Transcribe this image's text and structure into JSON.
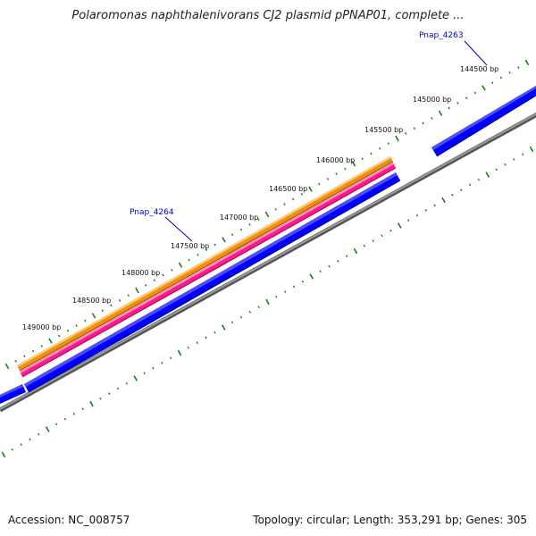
{
  "title": "Polaromonas naphthalenivorans CJ2 plasmid pPNAP01, complete ...",
  "footer": {
    "accession": "Accession: NC_008757",
    "summary": "Topology: circular; Length: 353,291 bp; Genes: 305"
  },
  "ticks": [
    "144500 bp",
    "145000 bp",
    "145500 bp",
    "146000 bp",
    "146500 bp",
    "147000 bp",
    "147500 bp",
    "148000 bp",
    "148500 bp",
    "149000 bp"
  ],
  "genes": [
    {
      "name": "Pnap_4263",
      "color": "#0000ff"
    },
    {
      "name": "Pnap_4264",
      "color": "#0000ff"
    }
  ],
  "tracks": {
    "cds_color": "#f0900a",
    "rna_color": "#ff1a8c",
    "gene_color": "#0000ff",
    "backbone_color": "#808080",
    "tick_color": "#1e7b1e"
  }
}
